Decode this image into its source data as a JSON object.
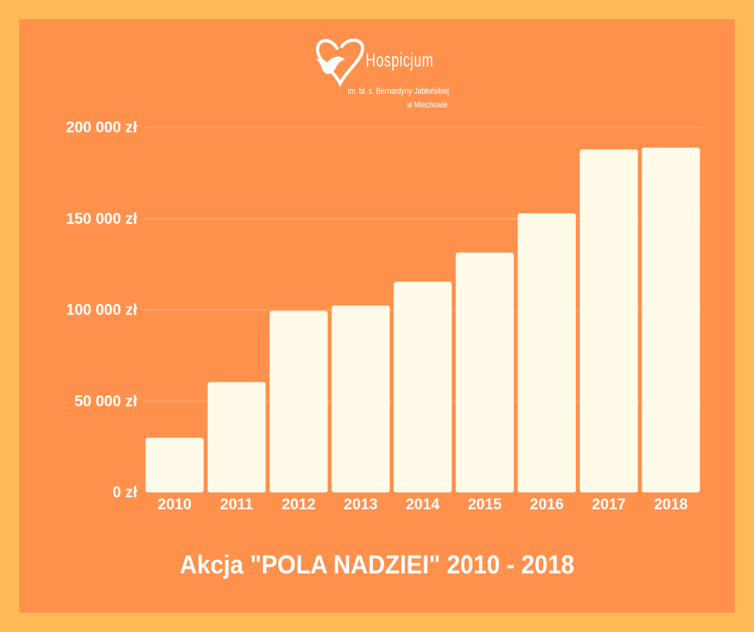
{
  "logo": {
    "name": "Hospicjum",
    "line1": "im. bł. s. Bernardyny Jabłońskiej",
    "line2": "w Miechowie"
  },
  "chart_data": {
    "type": "bar",
    "title": "Akcja \"POLA NADZIEI\" 2010 - 2018",
    "xlabel": "",
    "ylabel": "",
    "categories": [
      "2010",
      "2011",
      "2012",
      "2013",
      "2014",
      "2015",
      "2016",
      "2017",
      "2018"
    ],
    "values": [
      30000,
      60500,
      99500,
      102500,
      115500,
      131500,
      153000,
      188000,
      189000
    ],
    "ylim": [
      0,
      200000
    ],
    "yticks": [
      0,
      50000,
      100000,
      150000,
      200000
    ],
    "ytick_labels": [
      "0 zł",
      "50 000 zł",
      "100 000 zł",
      "150 000 zł",
      "200 000 zł"
    ],
    "grid": true,
    "legend": "none",
    "colors": {
      "bar": "#FFFBE8",
      "grid": "#FFB380",
      "text": "#FFFFFF",
      "background": "#FF914D",
      "border": "#FFB957"
    }
  }
}
